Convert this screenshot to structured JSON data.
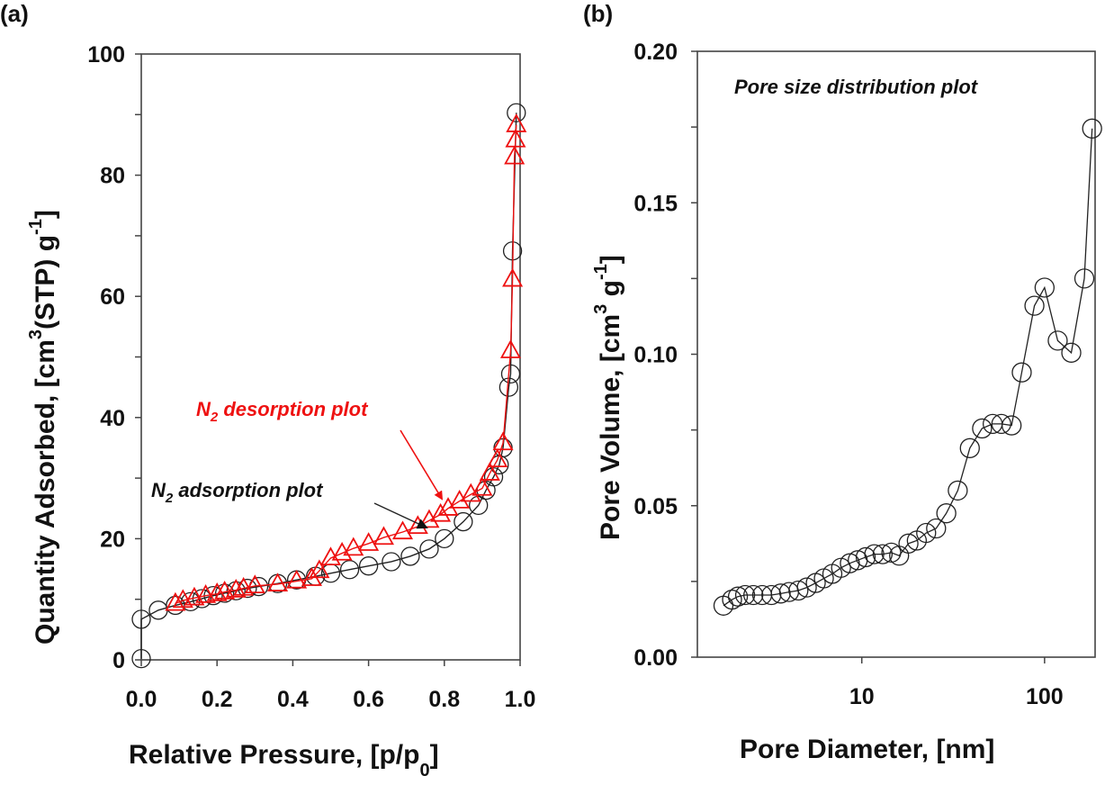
{
  "chart_data": [
    {
      "panel": "(a)",
      "type": "scatter",
      "xlabel": "Relative Pressure, [p/p",
      "xlabel_sub": "0",
      "xlabel_close": "]",
      "ylabel": "Quantity Adsorbed, [cm",
      "ylabel_sup": "3",
      "ylabel_mid": "(STP) g",
      "ylabel_sup2": "-1",
      "ylabel_close": "]",
      "xlim": [
        0.0,
        1.0
      ],
      "ylim": [
        0,
        100
      ],
      "xticks": [
        "0.0",
        "0.2",
        "0.4",
        "0.6",
        "0.8",
        "1.0"
      ],
      "xtick_values": [
        0.0,
        0.2,
        0.4,
        0.6,
        0.8,
        1.0
      ],
      "yticks": [
        "0",
        "20",
        "40",
        "60",
        "80",
        "100"
      ],
      "ytick_values": [
        0,
        20,
        40,
        60,
        80,
        100
      ],
      "yminor": [
        10,
        30,
        50,
        70,
        90
      ],
      "grid": false,
      "annotations": [
        {
          "text": "N",
          "sub": "2",
          "rest": " desorption plot",
          "color": "#ee1111",
          "arrow_to_series": "desorption"
        },
        {
          "text": "N",
          "sub": "2",
          "rest": " adsorption plot",
          "color": "#111111",
          "arrow_to_series": "adsorption"
        }
      ],
      "series": [
        {
          "name": "N2 adsorption",
          "marker": "circle",
          "color": "#222222",
          "x": [
            0.0,
            0.0,
            0.045,
            0.09,
            0.13,
            0.16,
            0.19,
            0.22,
            0.25,
            0.28,
            0.31,
            0.36,
            0.41,
            0.46,
            0.5,
            0.55,
            0.6,
            0.66,
            0.71,
            0.76,
            0.8,
            0.85,
            0.89,
            0.91,
            0.93,
            0.945,
            0.955,
            0.97,
            0.975,
            0.98,
            0.99
          ],
          "y": [
            0.2,
            6.7,
            8.2,
            9.0,
            9.6,
            10.1,
            10.6,
            11.0,
            11.4,
            11.8,
            12.1,
            12.6,
            13.2,
            13.8,
            14.3,
            14.9,
            15.5,
            16.2,
            17.1,
            18.3,
            20.0,
            22.8,
            25.5,
            28.0,
            30.2,
            32.2,
            35.0,
            45.0,
            47.2,
            67.5,
            90.3
          ]
        },
        {
          "name": "N2 desorption",
          "marker": "triangle",
          "color": "#ee1111",
          "x": [
            0.99,
            0.988,
            0.985,
            0.98,
            0.975,
            0.955,
            0.94,
            0.92,
            0.9,
            0.87,
            0.84,
            0.81,
            0.79,
            0.76,
            0.73,
            0.69,
            0.64,
            0.6,
            0.56,
            0.53,
            0.5,
            0.47,
            0.45,
            0.41,
            0.36,
            0.3,
            0.27,
            0.25,
            0.22,
            0.2,
            0.17,
            0.14,
            0.11,
            0.09
          ],
          "y": [
            88.3,
            85.8,
            83.0,
            62.8,
            51.0,
            35.8,
            33.0,
            30.8,
            28.3,
            27.3,
            26.2,
            25.0,
            24.0,
            23.0,
            22.0,
            21.1,
            20.2,
            19.2,
            18.4,
            17.6,
            16.8,
            14.7,
            13.4,
            13.0,
            12.5,
            12.2,
            11.8,
            11.5,
            11.2,
            10.9,
            10.6,
            10.2,
            9.8,
            9.3
          ]
        }
      ]
    },
    {
      "panel": "(b)",
      "type": "line",
      "title": "Pore size distribution  plot",
      "xlabel": "Pore Diameter, [nm]",
      "ylabel": "Pore Volume, [cm",
      "ylabel_sup": "3",
      "ylabel_mid": " g",
      "ylabel_sup2": "-1",
      "ylabel_close": "]",
      "xscale": "log",
      "xlim": [
        1.26,
        189
      ],
      "ylim": [
        0.0,
        0.2
      ],
      "xticks": [
        "10",
        "100"
      ],
      "xtick_values": [
        10,
        100
      ],
      "yticks": [
        "0.00",
        "0.05",
        "0.10",
        "0.15",
        "0.20"
      ],
      "ytick_values": [
        0.0,
        0.05,
        0.1,
        0.15,
        0.2
      ],
      "yminor": [
        0.025,
        0.075,
        0.125,
        0.175
      ],
      "grid": false,
      "series": [
        {
          "name": "Pore volume",
          "marker": "circle",
          "color": "#222222",
          "x": [
            1.75,
            1.95,
            2.1,
            2.3,
            2.55,
            2.85,
            3.2,
            3.6,
            4.0,
            4.5,
            5.0,
            5.6,
            6.2,
            6.9,
            7.7,
            8.6,
            9.5,
            10.5,
            11.7,
            13.0,
            14.5,
            16.0,
            18.0,
            20.0,
            22.5,
            25.5,
            29.0,
            33.5,
            39.0,
            45.5,
            52.0,
            58.0,
            66.0,
            75.0,
            88.0,
            100.0,
            118.0,
            140.0,
            165.0,
            182.0
          ],
          "y": [
            0.017,
            0.019,
            0.02,
            0.0205,
            0.0205,
            0.0205,
            0.0205,
            0.021,
            0.0215,
            0.022,
            0.023,
            0.0245,
            0.026,
            0.0275,
            0.0295,
            0.031,
            0.032,
            0.033,
            0.034,
            0.034,
            0.0345,
            0.0335,
            0.0375,
            0.0385,
            0.041,
            0.0425,
            0.0475,
            0.055,
            0.069,
            0.0755,
            0.077,
            0.077,
            0.0765,
            0.094,
            0.116,
            0.122,
            0.1045,
            0.1005,
            0.125,
            0.1745
          ]
        }
      ]
    }
  ]
}
